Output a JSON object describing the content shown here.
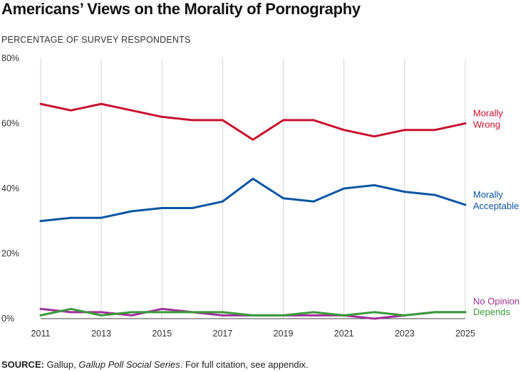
{
  "title": "Americans’ Views on the Morality of Pornography",
  "subtitle": "PERCENTAGE OF SURVEY RESPONDENTS",
  "source": {
    "label": "SOURCE:",
    "text_before": " Gallup, ",
    "italic": "Gallup Poll Social Series",
    "text_after": ". For full citation, see appendix."
  },
  "chart_data": {
    "type": "line",
    "x": [
      2011,
      2012,
      2013,
      2014,
      2015,
      2016,
      2017,
      2018,
      2019,
      2020,
      2021,
      2022,
      2023,
      2024,
      2025
    ],
    "xticks": [
      "2011",
      "2013",
      "2015",
      "2017",
      "2019",
      "2021",
      "2023",
      "2025"
    ],
    "yticks": [
      "0%",
      "20%",
      "40%",
      "60%",
      "80%"
    ],
    "ylim": [
      0,
      80
    ],
    "xlim": [
      2011,
      2025
    ],
    "grid": "vertical",
    "series": [
      {
        "name": "Morally Wrong",
        "label_lines": [
          "Morally",
          "Wrong"
        ],
        "color": "#c8102e",
        "values": [
          66,
          64,
          66,
          64,
          62,
          61,
          61,
          55,
          61,
          61,
          58,
          56,
          58,
          58,
          60
        ]
      },
      {
        "name": "Morally Acceptable",
        "label_lines": [
          "Morally",
          "Acceptable"
        ],
        "color": "#0b55a5",
        "values": [
          30,
          31,
          31,
          33,
          34,
          34,
          36,
          43,
          37,
          36,
          40,
          41,
          39,
          38,
          35
        ]
      },
      {
        "name": "No Opinion",
        "label_lines": [
          "No Opinion"
        ],
        "color": "#a0309a",
        "values": [
          3,
          2,
          2,
          1,
          3,
          2,
          1,
          1,
          1,
          1,
          1,
          0,
          1,
          2,
          2
        ]
      },
      {
        "name": "Depends",
        "label_lines": [
          "Depends"
        ],
        "color": "#3a9a3a",
        "values": [
          1,
          3,
          1,
          2,
          2,
          2,
          2,
          1,
          1,
          2,
          1,
          2,
          1,
          2,
          2
        ]
      }
    ]
  }
}
